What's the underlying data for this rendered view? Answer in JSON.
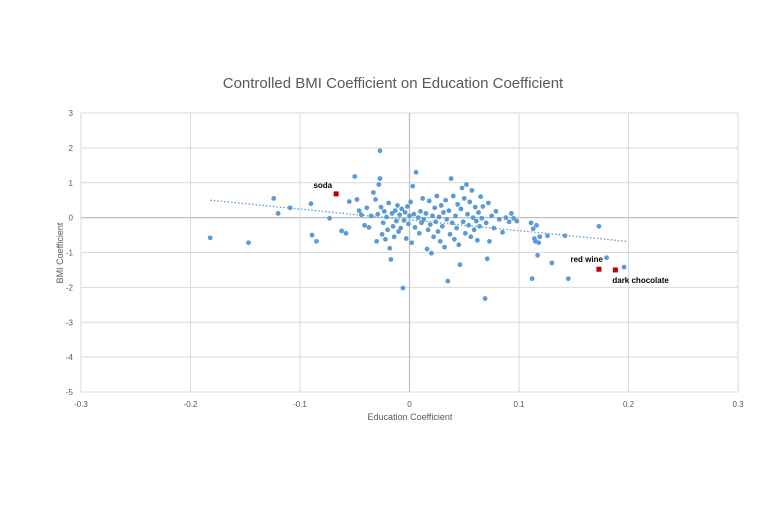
{
  "chart_data": {
    "type": "scatter",
    "title": "Controlled BMI Coefficient on Education Coefficient",
    "xlabel": "Education Coefficient",
    "ylabel": "BMI Coefficient",
    "xlim": [
      -0.3,
      0.3
    ],
    "ylim": [
      -5,
      3
    ],
    "x_ticks": [
      -0.3,
      -0.2,
      -0.1,
      0,
      0.1,
      0.2,
      0.3
    ],
    "y_ticks": [
      -5,
      -4,
      -3,
      -2,
      -1,
      0,
      1,
      2,
      3
    ],
    "x_tick_labels": [
      "-0.3",
      "-0.2",
      "-0.1",
      "0",
      "0.1",
      "0.2",
      "0.3"
    ],
    "y_tick_labels": [
      "-5",
      "-4",
      "-3",
      "-2",
      "-1",
      "0",
      "1",
      "2",
      "3"
    ],
    "grid": true,
    "colors": {
      "points": "#5b9bd5",
      "highlight": "#c00000",
      "trend": "#5b9bd5",
      "grid": "#d9d9d9",
      "zero_axis": "#bfbfbf"
    },
    "trendline": {
      "style": "dotted",
      "from": [
        -0.182,
        0.5
      ],
      "to": [
        0.198,
        -0.68
      ]
    },
    "highlighted": [
      {
        "label": "soda",
        "x": -0.067,
        "y": 0.68
      },
      {
        "label": "red wine",
        "x": 0.173,
        "y": -1.48
      },
      {
        "label": "dark chocolate",
        "x": 0.188,
        "y": -1.5
      }
    ],
    "points": [
      [
        -0.182,
        -0.58
      ],
      [
        -0.147,
        -0.72
      ],
      [
        -0.124,
        0.55
      ],
      [
        -0.12,
        0.12
      ],
      [
        -0.109,
        0.28
      ],
      [
        -0.09,
        0.4
      ],
      [
        -0.089,
        -0.5
      ],
      [
        -0.085,
        -0.68
      ],
      [
        -0.073,
        -0.02
      ],
      [
        -0.062,
        -0.38
      ],
      [
        -0.058,
        -0.45
      ],
      [
        -0.055,
        0.46
      ],
      [
        -0.05,
        1.18
      ],
      [
        -0.048,
        0.52
      ],
      [
        -0.046,
        0.2
      ],
      [
        -0.044,
        0.08
      ],
      [
        -0.041,
        -0.22
      ],
      [
        -0.039,
        0.28
      ],
      [
        -0.037,
        -0.28
      ],
      [
        -0.035,
        0.05
      ],
      [
        -0.033,
        0.72
      ],
      [
        -0.031,
        0.52
      ],
      [
        -0.03,
        -0.68
      ],
      [
        -0.029,
        0.1
      ],
      [
        -0.028,
        0.95
      ],
      [
        -0.027,
        1.12
      ],
      [
        -0.027,
        1.92
      ],
      [
        -0.026,
        0.3
      ],
      [
        -0.025,
        -0.48
      ],
      [
        -0.024,
        -0.15
      ],
      [
        -0.023,
        0.18
      ],
      [
        -0.022,
        -0.62
      ],
      [
        -0.021,
        0.02
      ],
      [
        -0.02,
        -0.35
      ],
      [
        -0.019,
        0.42
      ],
      [
        -0.018,
        -0.88
      ],
      [
        -0.017,
        -1.2
      ],
      [
        -0.016,
        0.12
      ],
      [
        -0.015,
        -0.25
      ],
      [
        -0.014,
        -0.55
      ],
      [
        -0.013,
        0.2
      ],
      [
        -0.012,
        -0.1
      ],
      [
        -0.011,
        0.35
      ],
      [
        -0.01,
        -0.4
      ],
      [
        -0.009,
        0.08
      ],
      [
        -0.008,
        -0.3
      ],
      [
        -0.007,
        0.25
      ],
      [
        -0.006,
        -2.02
      ],
      [
        -0.005,
        -0.08
      ],
      [
        -0.004,
        0.15
      ],
      [
        -0.003,
        -0.6
      ],
      [
        -0.002,
        0.32
      ],
      [
        -0.001,
        -0.18
      ],
      [
        0.0,
        0.05
      ],
      [
        0.001,
        0.45
      ],
      [
        0.002,
        -0.72
      ],
      [
        0.003,
        0.9
      ],
      [
        0.004,
        0.1
      ],
      [
        0.005,
        -0.28
      ],
      [
        0.006,
        1.3
      ],
      [
        0.008,
        0.0
      ],
      [
        0.009,
        -0.45
      ],
      [
        0.01,
        0.18
      ],
      [
        0.011,
        -0.15
      ],
      [
        0.012,
        0.55
      ],
      [
        0.013,
        -0.05
      ],
      [
        0.015,
        0.12
      ],
      [
        0.016,
        -0.9
      ],
      [
        0.017,
        -0.35
      ],
      [
        0.018,
        0.48
      ],
      [
        0.019,
        -0.2
      ],
      [
        0.02,
        -1.02
      ],
      [
        0.021,
        0.05
      ],
      [
        0.022,
        -0.55
      ],
      [
        0.023,
        0.28
      ],
      [
        0.024,
        -0.12
      ],
      [
        0.025,
        0.62
      ],
      [
        0.026,
        -0.4
      ],
      [
        0.027,
        0.02
      ],
      [
        0.028,
        -0.68
      ],
      [
        0.029,
        0.35
      ],
      [
        0.03,
        -0.25
      ],
      [
        0.031,
        0.15
      ],
      [
        0.032,
        -0.85
      ],
      [
        0.033,
        0.5
      ],
      [
        0.034,
        -0.05
      ],
      [
        0.035,
        -1.82
      ],
      [
        0.036,
        0.2
      ],
      [
        0.037,
        -0.48
      ],
      [
        0.038,
        1.12
      ],
      [
        0.039,
        -0.15
      ],
      [
        0.04,
        0.62
      ],
      [
        0.041,
        -0.62
      ],
      [
        0.042,
        0.05
      ],
      [
        0.043,
        -0.3
      ],
      [
        0.044,
        0.38
      ],
      [
        0.045,
        -0.78
      ],
      [
        0.046,
        -1.35
      ],
      [
        0.047,
        0.25
      ],
      [
        0.048,
        0.85
      ],
      [
        0.049,
        -0.12
      ],
      [
        0.05,
        0.55
      ],
      [
        0.051,
        -0.45
      ],
      [
        0.052,
        0.95
      ],
      [
        0.053,
        0.1
      ],
      [
        0.054,
        -0.22
      ],
      [
        0.055,
        0.45
      ],
      [
        0.056,
        -0.55
      ],
      [
        0.057,
        0.78
      ],
      [
        0.058,
        0.0
      ],
      [
        0.059,
        -0.35
      ],
      [
        0.06,
        0.3
      ],
      [
        0.061,
        -0.1
      ],
      [
        0.062,
        -0.65
      ],
      [
        0.063,
        0.15
      ],
      [
        0.064,
        -0.25
      ],
      [
        0.065,
        0.6
      ],
      [
        0.066,
        -0.02
      ],
      [
        0.067,
        0.32
      ],
      [
        0.069,
        -2.32
      ],
      [
        0.07,
        -0.15
      ],
      [
        0.071,
        -1.18
      ],
      [
        0.072,
        0.42
      ],
      [
        0.073,
        -0.68
      ],
      [
        0.075,
        0.05
      ],
      [
        0.077,
        -0.3
      ],
      [
        0.079,
        0.18
      ],
      [
        0.082,
        -0.05
      ],
      [
        0.085,
        -0.42
      ],
      [
        0.088,
        0.0
      ],
      [
        0.091,
        -0.12
      ],
      [
        0.093,
        0.12
      ],
      [
        0.095,
        -0.02
      ],
      [
        0.098,
        -0.1
      ],
      [
        0.111,
        -0.15
      ],
      [
        0.112,
        -1.75
      ],
      [
        0.113,
        -0.32
      ],
      [
        0.114,
        -0.6
      ],
      [
        0.115,
        -0.68
      ],
      [
        0.116,
        -0.22
      ],
      [
        0.117,
        -1.08
      ],
      [
        0.118,
        -0.72
      ],
      [
        0.119,
        -0.55
      ],
      [
        0.126,
        -0.52
      ],
      [
        0.13,
        -1.3
      ],
      [
        0.142,
        -0.52
      ],
      [
        0.145,
        -1.75
      ],
      [
        0.173,
        -0.25
      ],
      [
        0.18,
        -1.15
      ],
      [
        0.196,
        -1.42
      ]
    ]
  }
}
